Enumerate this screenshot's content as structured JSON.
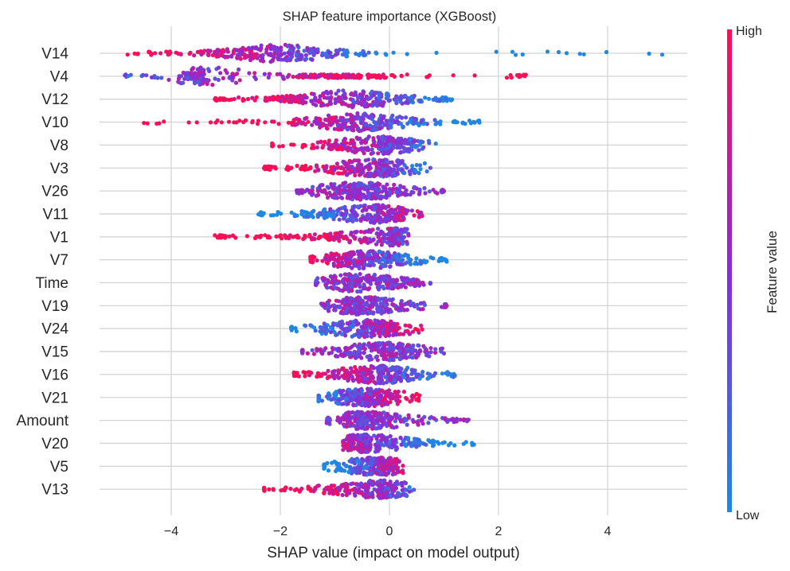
{
  "chart_data": {
    "type": "scatter",
    "subtype": "shap-beeswarm",
    "title": "SHAP feature importance (XGBoost)",
    "xlabel": "SHAP value (impact on model output)",
    "ylabel": "",
    "xlim": [
      -5.35,
      5.4
    ],
    "xticks": [
      -4,
      -2,
      0,
      2,
      4
    ],
    "xtick_labels": [
      "−4",
      "−2",
      "0",
      "2",
      "4"
    ],
    "grid": "vertical lines at x ticks; horizontal line per feature row",
    "colorbar": {
      "label": "Feature value",
      "high_label": "High",
      "low_label": "Low",
      "high_color": "#ff0d57",
      "mid_color": "#8a2bd8",
      "low_color": "#1e88e5"
    },
    "features": [
      {
        "name": "V14",
        "min": -4.8,
        "max": 5.0,
        "dense_left": -4.0,
        "dense_right": 0.0,
        "peak": -2.0,
        "pos_gap": [
          0.0,
          1.05
        ],
        "color_trend": "neg"
      },
      {
        "name": "V4",
        "min": -4.85,
        "max": 2.5,
        "dense_left": -4.1,
        "dense_right": 2.2,
        "peak": -3.3,
        "peak2": -0.9,
        "color_trend": "pos"
      },
      {
        "name": "V12",
        "min": -3.2,
        "max": 1.15,
        "dense_left": -3.0,
        "dense_right": 0.9,
        "peak": -0.7,
        "color_trend": "neg"
      },
      {
        "name": "V10",
        "min": -4.5,
        "max": 1.65,
        "dense_left": -2.3,
        "dense_right": 1.1,
        "peak": -0.55,
        "color_trend": "neg"
      },
      {
        "name": "V8",
        "min": -2.15,
        "max": 0.85,
        "dense_left": -2.15,
        "dense_right": 0.85,
        "peak": -0.2,
        "color_trend": "neg"
      },
      {
        "name": "V3",
        "min": -2.3,
        "max": 0.75,
        "dense_left": -2.2,
        "dense_right": 0.75,
        "peak": -0.25,
        "color_trend": "neg"
      },
      {
        "name": "V26",
        "min": -1.7,
        "max": 1.0,
        "dense_left": -1.6,
        "dense_right": 0.95,
        "peak": -0.55,
        "color_trend": "mixed"
      },
      {
        "name": "V11",
        "min": -2.4,
        "max": 0.6,
        "dense_left": -2.3,
        "dense_right": 0.55,
        "peak": -0.3,
        "color_trend": "pos"
      },
      {
        "name": "V1",
        "min": -3.2,
        "max": 0.35,
        "dense_left": -3.0,
        "dense_right": 0.35,
        "peak": 0.0,
        "color_trend": "neg"
      },
      {
        "name": "V7",
        "min": -1.45,
        "max": 1.05,
        "dense_left": -1.4,
        "dense_right": 0.9,
        "peak": -0.45,
        "color_trend": "neg"
      },
      {
        "name": "Time",
        "min": -1.35,
        "max": 0.75,
        "dense_left": -1.35,
        "dense_right": 0.75,
        "peak": -0.6,
        "peak2": 0.05,
        "color_trend": "mixed"
      },
      {
        "name": "V19",
        "min": -1.25,
        "max": 1.05,
        "dense_left": -1.1,
        "dense_right": 1.0,
        "peak": -0.5,
        "color_trend": "mixed"
      },
      {
        "name": "V24",
        "min": -1.8,
        "max": 0.6,
        "dense_left": -1.8,
        "dense_right": 0.6,
        "peak": -0.4,
        "color_trend": "pos"
      },
      {
        "name": "V15",
        "min": -1.6,
        "max": 1.0,
        "dense_left": -1.6,
        "dense_right": 1.0,
        "peak": -0.1,
        "color_trend": "mixed"
      },
      {
        "name": "V16",
        "min": -1.75,
        "max": 1.2,
        "dense_left": -1.7,
        "dense_right": 1.0,
        "peak": -0.2,
        "color_trend": "neg"
      },
      {
        "name": "V21",
        "min": -1.3,
        "max": 0.55,
        "dense_left": -1.3,
        "dense_right": 0.55,
        "peak": -0.4,
        "color_trend": "pos"
      },
      {
        "name": "Amount",
        "min": -1.15,
        "max": 1.45,
        "dense_left": -1.1,
        "dense_right": 1.0,
        "peak": -0.4,
        "color_trend": "mixed"
      },
      {
        "name": "V20",
        "min": -0.85,
        "max": 1.55,
        "dense_left": -0.85,
        "dense_right": 1.55,
        "peak": -0.4,
        "color_trend": "neg"
      },
      {
        "name": "V5",
        "min": -1.2,
        "max": 0.25,
        "dense_left": -1.2,
        "dense_right": 0.25,
        "peak": -0.2,
        "color_trend": "pos"
      },
      {
        "name": "V13",
        "min": -2.3,
        "max": 0.45,
        "dense_left": -2.3,
        "dense_right": 0.45,
        "peak": -0.2,
        "color_trend": "neg"
      }
    ]
  }
}
